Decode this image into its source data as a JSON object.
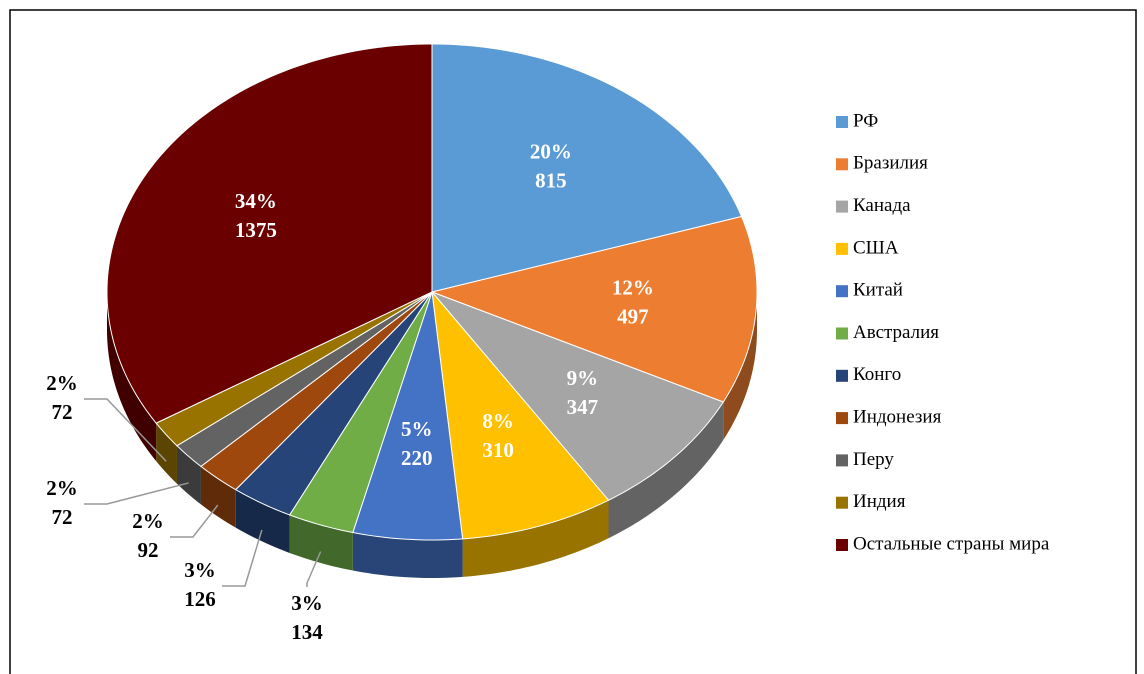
{
  "chart_data": {
    "type": "pie3d",
    "categories": [
      "РФ",
      "Бразилия",
      "Канада",
      "США",
      "Китай",
      "Австралия",
      "Конго",
      "Индонезия",
      "Перу",
      "Индия",
      "Остальные страны мира"
    ],
    "values": [
      815,
      497,
      347,
      310,
      220,
      134,
      126,
      92,
      72,
      72,
      1375
    ],
    "percent_labels": [
      "20%",
      "12%",
      "9%",
      "8%",
      "5%",
      "3%",
      "3%",
      "2%",
      "2%",
      "2%",
      "34%"
    ],
    "colors": [
      "#5b9bd5",
      "#ed7d31",
      "#a5a5a5",
      "#ffc000",
      "#4472c4",
      "#70ad47",
      "#264478",
      "#9e480e",
      "#636363",
      "#997300",
      "#6b0000"
    ],
    "legend": "right"
  }
}
